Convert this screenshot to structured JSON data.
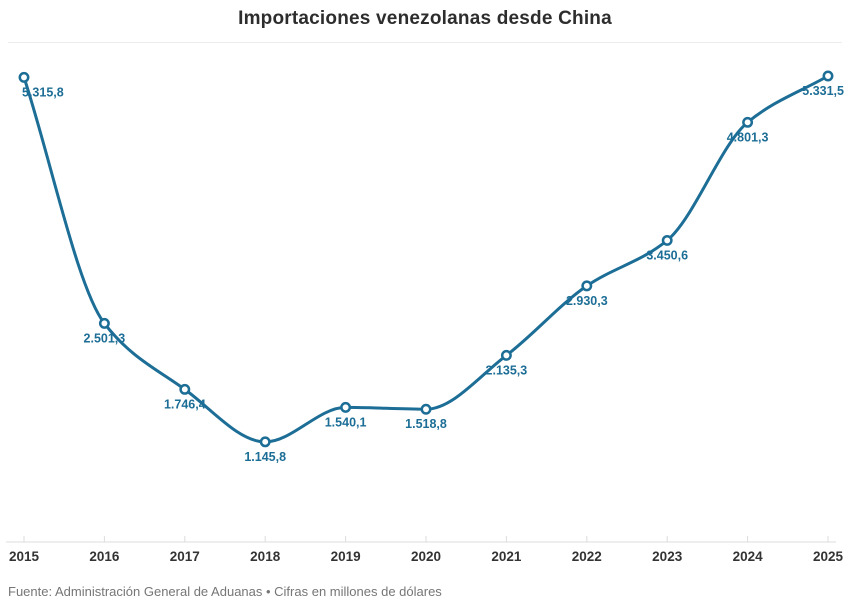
{
  "chart_data": {
    "type": "line",
    "title": "Importaciones venezolanas desde China",
    "categories": [
      "2015",
      "2016",
      "2017",
      "2018",
      "2019",
      "2020",
      "2021",
      "2022",
      "2023",
      "2024",
      "2025"
    ],
    "values": [
      5315.8,
      2501.3,
      1746.4,
      1145.8,
      1540.1,
      1518.8,
      2135.3,
      2930.3,
      3450.6,
      4801.3,
      5331.5
    ],
    "point_labels": [
      "5.315,8",
      "2.501,3",
      "1.746,4",
      "1.145,8",
      "1.540,1",
      "1.518,8",
      "2.135,3",
      "2.930,3",
      "3.450,6",
      "4.801,3",
      "5.331,5"
    ],
    "xlabel": "",
    "ylabel": "",
    "ylim": [
      0,
      5600
    ],
    "grid": false,
    "legend": "none",
    "line_style": "smooth-curve",
    "marker": "open-circle",
    "colors": {
      "line": "#1d6e96",
      "point_label": "#1d6e96",
      "marker_fill": "#ffffff",
      "axis": "#dcdcdc",
      "axis_label": "#333333",
      "title": "#2d2d2d",
      "footer_text": "#767676"
    }
  },
  "footer": {
    "source": "Fuente: Administración General de Aduanas • Cifras en millones de dólares"
  }
}
